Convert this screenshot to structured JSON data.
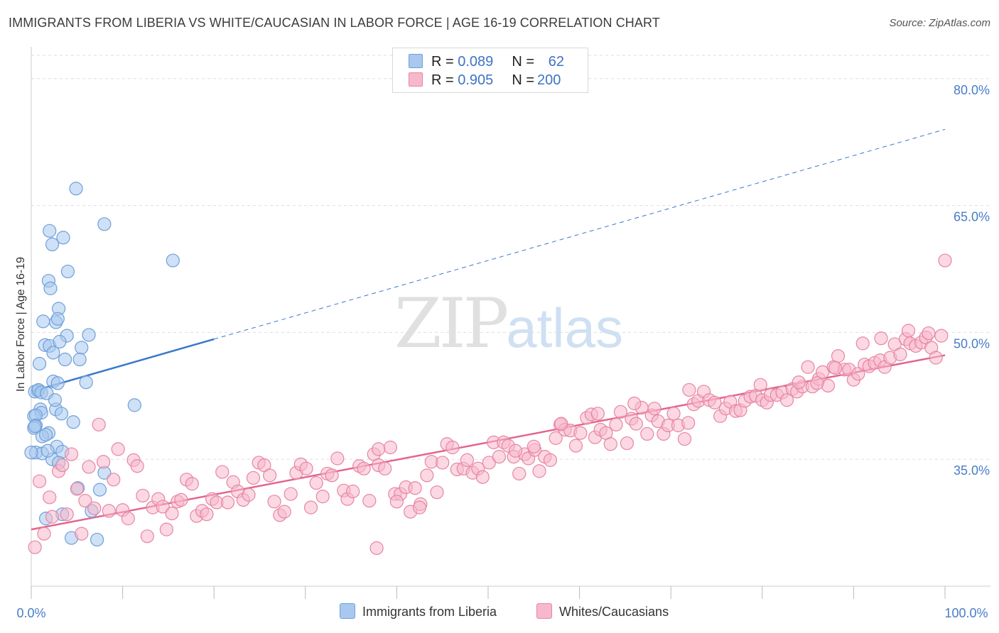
{
  "title": "IMMIGRANTS FROM LIBERIA VS WHITE/CAUCASIAN IN LABOR FORCE | AGE 16-19 CORRELATION CHART",
  "source": "Source: ZipAtlas.com",
  "watermark": {
    "zip": "ZIP",
    "atlas": "atlas"
  },
  "legend_top": [
    {
      "r_label": "R =",
      "r_value": "0.089",
      "n_label": "N =",
      "n_value": "62",
      "color": "#a8c8ef",
      "border": "#6f9fd8"
    },
    {
      "r_label": "R =",
      "r_value": "0.905",
      "n_label": "N =",
      "n_value": "200",
      "color": "#f7b8cb",
      "border": "#e685a5"
    }
  ],
  "legend_bottom": [
    {
      "label": "Immigrants from Liberia",
      "color": "#a8c8ef",
      "border": "#6f9fd8"
    },
    {
      "label": "Whites/Caucasians",
      "color": "#f7b8cb",
      "border": "#e685a5"
    }
  ],
  "chart_data": {
    "type": "scatter",
    "title": "IMMIGRANTS FROM LIBERIA VS WHITE/CAUCASIAN IN LABOR FORCE | AGE 16-19 CORRELATION CHART",
    "xlabel": "",
    "ylabel": "In Labor Force | Age 16-19",
    "xlim": [
      0,
      100
    ],
    "ylim": [
      20,
      83
    ],
    "x_tick_labels": [
      "0.0%",
      "100.0%"
    ],
    "y_ticks": [
      35,
      50,
      65,
      80
    ],
    "y_tick_labels": [
      "35.0%",
      "50.0%",
      "65.0%",
      "80.0%"
    ],
    "grid": true,
    "legend_position": "top-center",
    "series": [
      {
        "name": "Immigrants from Liberia",
        "color": "#a8c8ef",
        "edge": "#6f9fd8",
        "trend": {
          "x0": 0,
          "y0": 43.0,
          "x1": 20,
          "y1": 49.2,
          "dashed_to_x": 100,
          "dashed_to_y": 74.0,
          "color": "#3a78cc"
        },
        "points": [
          [
            4.9,
            67.0
          ],
          [
            8.0,
            62.8
          ],
          [
            2.0,
            62.0
          ],
          [
            3.5,
            61.2
          ],
          [
            2.3,
            60.4
          ],
          [
            15.5,
            58.5
          ],
          [
            4.0,
            57.2
          ],
          [
            1.9,
            56.1
          ],
          [
            2.1,
            55.2
          ],
          [
            3.0,
            52.8
          ],
          [
            1.3,
            51.3
          ],
          [
            2.7,
            51.2
          ],
          [
            2.9,
            51.6
          ],
          [
            6.3,
            49.7
          ],
          [
            3.9,
            49.6
          ],
          [
            1.5,
            48.5
          ],
          [
            2.0,
            48.4
          ],
          [
            5.5,
            48.2
          ],
          [
            2.4,
            47.6
          ],
          [
            3.7,
            46.8
          ],
          [
            5.3,
            46.8
          ],
          [
            0.9,
            46.3
          ],
          [
            2.4,
            44.2
          ],
          [
            2.9,
            44.0
          ],
          [
            0.7,
            43.1
          ],
          [
            0.4,
            43.0
          ],
          [
            0.8,
            43.2
          ],
          [
            1.1,
            42.9
          ],
          [
            1.7,
            42.8
          ],
          [
            11.3,
            41.4
          ],
          [
            2.7,
            40.9
          ],
          [
            1.0,
            40.9
          ],
          [
            1.1,
            40.5
          ],
          [
            3.3,
            40.4
          ],
          [
            0.3,
            40.1
          ],
          [
            0.5,
            40.2
          ],
          [
            4.6,
            39.4
          ],
          [
            0.5,
            39.0
          ],
          [
            0.3,
            38.7
          ],
          [
            1.9,
            38.1
          ],
          [
            1.2,
            37.7
          ],
          [
            1.6,
            37.9
          ],
          [
            0.5,
            35.8
          ],
          [
            2.8,
            36.5
          ],
          [
            3.4,
            35.9
          ],
          [
            1.2,
            35.7
          ],
          [
            2.3,
            35.0
          ],
          [
            8.0,
            33.4
          ],
          [
            5.1,
            31.6
          ],
          [
            7.5,
            31.4
          ],
          [
            3.0,
            34.6
          ],
          [
            6.6,
            28.9
          ],
          [
            3.4,
            28.5
          ],
          [
            1.6,
            28.0
          ],
          [
            4.4,
            25.7
          ],
          [
            7.2,
            25.5
          ],
          [
            0.0,
            35.8
          ],
          [
            0.4,
            38.9
          ],
          [
            1.8,
            36.0
          ],
          [
            2.6,
            42.0
          ],
          [
            3.1,
            48.9
          ],
          [
            6.0,
            44.1
          ]
        ]
      },
      {
        "name": "Whites/Caucasians",
        "color": "#f7b8cb",
        "edge": "#e685a5",
        "trend": {
          "x0": 0,
          "y0": 26.7,
          "x1": 100,
          "y1": 47.3,
          "color": "#e4648f"
        },
        "points": [
          [
            0.4,
            24.6
          ],
          [
            0.9,
            32.4
          ],
          [
            1.4,
            26.2
          ],
          [
            2.0,
            30.5
          ],
          [
            2.3,
            28.2
          ],
          [
            3.0,
            33.6
          ],
          [
            3.4,
            34.3
          ],
          [
            3.9,
            28.5
          ],
          [
            4.4,
            35.6
          ],
          [
            5.0,
            31.5
          ],
          [
            5.5,
            26.2
          ],
          [
            5.9,
            30.1
          ],
          [
            6.3,
            34.1
          ],
          [
            6.9,
            29.2
          ],
          [
            7.4,
            39.1
          ],
          [
            7.9,
            34.7
          ],
          [
            8.5,
            28.9
          ],
          [
            9.0,
            32.6
          ],
          [
            9.5,
            36.2
          ],
          [
            10.0,
            29.0
          ],
          [
            10.6,
            28.0
          ],
          [
            11.2,
            34.9
          ],
          [
            11.6,
            34.2
          ],
          [
            12.2,
            30.7
          ],
          [
            12.7,
            25.9
          ],
          [
            13.3,
            29.3
          ],
          [
            13.9,
            30.3
          ],
          [
            14.4,
            29.4
          ],
          [
            14.8,
            26.7
          ],
          [
            15.4,
            28.6
          ],
          [
            16.0,
            30.0
          ],
          [
            16.4,
            30.2
          ],
          [
            17.0,
            32.6
          ],
          [
            17.6,
            32.1
          ],
          [
            18.1,
            28.3
          ],
          [
            18.7,
            28.9
          ],
          [
            19.2,
            28.5
          ],
          [
            19.8,
            30.3
          ],
          [
            20.3,
            29.9
          ],
          [
            20.9,
            33.5
          ],
          [
            21.5,
            29.9
          ],
          [
            22.1,
            32.3
          ],
          [
            22.6,
            31.2
          ],
          [
            23.2,
            30.2
          ],
          [
            23.8,
            30.8
          ],
          [
            24.3,
            32.8
          ],
          [
            24.9,
            34.6
          ],
          [
            25.5,
            34.3
          ],
          [
            26.1,
            33.1
          ],
          [
            26.6,
            30.0
          ],
          [
            27.2,
            28.4
          ],
          [
            27.7,
            28.8
          ],
          [
            28.4,
            30.9
          ],
          [
            29.0,
            33.4
          ],
          [
            29.5,
            34.4
          ],
          [
            30.1,
            33.9
          ],
          [
            30.6,
            29.3
          ],
          [
            31.2,
            32.2
          ],
          [
            31.9,
            30.6
          ],
          [
            32.4,
            33.3
          ],
          [
            32.9,
            33.1
          ],
          [
            33.5,
            35.1
          ],
          [
            34.2,
            31.3
          ],
          [
            34.6,
            30.3
          ],
          [
            35.2,
            31.2
          ],
          [
            35.9,
            34.2
          ],
          [
            36.4,
            33.9
          ],
          [
            37.0,
            30.1
          ],
          [
            37.5,
            35.6
          ],
          [
            38.0,
            34.3
          ],
          [
            38.7,
            33.9
          ],
          [
            39.3,
            36.4
          ],
          [
            39.8,
            30.9
          ],
          [
            40.4,
            30.9
          ],
          [
            41.0,
            31.7
          ],
          [
            41.5,
            28.8
          ],
          [
            42.0,
            31.6
          ],
          [
            42.6,
            29.7
          ],
          [
            43.3,
            33.1
          ],
          [
            43.8,
            34.7
          ],
          [
            44.4,
            31.1
          ],
          [
            45.0,
            34.6
          ],
          [
            45.5,
            36.8
          ],
          [
            46.1,
            36.4
          ],
          [
            46.6,
            33.8
          ],
          [
            47.3,
            33.9
          ],
          [
            47.7,
            34.9
          ],
          [
            48.3,
            33.4
          ],
          [
            48.9,
            33.9
          ],
          [
            49.4,
            32.9
          ],
          [
            50.1,
            34.6
          ],
          [
            50.6,
            37.0
          ],
          [
            51.2,
            35.3
          ],
          [
            51.7,
            37.0
          ],
          [
            52.2,
            36.6
          ],
          [
            52.8,
            35.3
          ],
          [
            53.4,
            33.3
          ],
          [
            54.0,
            35.6
          ],
          [
            54.4,
            35.1
          ],
          [
            55.1,
            36.1
          ],
          [
            55.6,
            33.6
          ],
          [
            56.2,
            35.3
          ],
          [
            56.8,
            34.9
          ],
          [
            57.4,
            37.5
          ],
          [
            57.9,
            39.1
          ],
          [
            58.4,
            38.5
          ],
          [
            59.0,
            38.4
          ],
          [
            59.6,
            36.6
          ],
          [
            60.1,
            38.1
          ],
          [
            60.8,
            39.9
          ],
          [
            61.3,
            40.3
          ],
          [
            61.7,
            37.6
          ],
          [
            62.3,
            38.5
          ],
          [
            62.9,
            38.1
          ],
          [
            63.4,
            36.8
          ],
          [
            64.0,
            39.1
          ],
          [
            64.5,
            40.6
          ],
          [
            65.2,
            36.9
          ],
          [
            65.7,
            39.8
          ],
          [
            66.2,
            39.2
          ],
          [
            66.8,
            41.1
          ],
          [
            67.4,
            38.0
          ],
          [
            67.9,
            40.2
          ],
          [
            68.6,
            39.5
          ],
          [
            69.2,
            38.0
          ],
          [
            69.7,
            39.0
          ],
          [
            70.3,
            40.4
          ],
          [
            70.8,
            39.0
          ],
          [
            71.5,
            37.4
          ],
          [
            71.9,
            39.3
          ],
          [
            72.5,
            41.5
          ],
          [
            73.0,
            41.9
          ],
          [
            73.6,
            43.0
          ],
          [
            74.2,
            42.0
          ],
          [
            74.8,
            41.7
          ],
          [
            75.4,
            40.1
          ],
          [
            76.0,
            41.0
          ],
          [
            76.5,
            41.8
          ],
          [
            77.1,
            40.7
          ],
          [
            77.6,
            40.8
          ],
          [
            78.1,
            41.9
          ],
          [
            78.7,
            42.4
          ],
          [
            79.3,
            42.5
          ],
          [
            80.0,
            42.0
          ],
          [
            80.5,
            41.7
          ],
          [
            80.9,
            42.6
          ],
          [
            81.6,
            42.6
          ],
          [
            82.2,
            42.9
          ],
          [
            82.7,
            42.0
          ],
          [
            83.3,
            43.3
          ],
          [
            83.8,
            43.0
          ],
          [
            84.4,
            43.6
          ],
          [
            85.0,
            45.9
          ],
          [
            85.5,
            43.6
          ],
          [
            86.2,
            44.5
          ],
          [
            86.6,
            45.3
          ],
          [
            87.2,
            43.7
          ],
          [
            87.8,
            45.9
          ],
          [
            88.3,
            47.2
          ],
          [
            89.0,
            45.6
          ],
          [
            89.5,
            45.6
          ],
          [
            90.0,
            44.4
          ],
          [
            90.5,
            45.1
          ],
          [
            91.2,
            46.2
          ],
          [
            91.7,
            46.0
          ],
          [
            92.3,
            46.4
          ],
          [
            92.9,
            46.7
          ],
          [
            93.4,
            45.9
          ],
          [
            94.0,
            47.0
          ],
          [
            94.5,
            48.6
          ],
          [
            95.1,
            47.4
          ],
          [
            95.7,
            49.2
          ],
          [
            96.2,
            48.7
          ],
          [
            96.8,
            48.4
          ],
          [
            97.4,
            48.8
          ],
          [
            97.9,
            49.4
          ],
          [
            98.5,
            48.2
          ],
          [
            99.0,
            47.0
          ],
          [
            99.6,
            49.6
          ],
          [
            100.0,
            58.5
          ],
          [
            96.0,
            50.2
          ],
          [
            93.0,
            49.3
          ],
          [
            98.2,
            49.9
          ],
          [
            91.0,
            48.7
          ],
          [
            88.0,
            45.8
          ],
          [
            86.0,
            44.0
          ],
          [
            84.0,
            44.1
          ],
          [
            79.8,
            43.8
          ],
          [
            72.0,
            43.2
          ],
          [
            68.2,
            41.0
          ],
          [
            66.0,
            41.6
          ],
          [
            62.0,
            40.4
          ],
          [
            58.0,
            39.2
          ],
          [
            55.0,
            36.5
          ],
          [
            53.0,
            36.0
          ],
          [
            38.0,
            36.2
          ],
          [
            40.0,
            30.0
          ],
          [
            37.8,
            24.5
          ],
          [
            42.5,
            29.3
          ]
        ]
      }
    ]
  }
}
